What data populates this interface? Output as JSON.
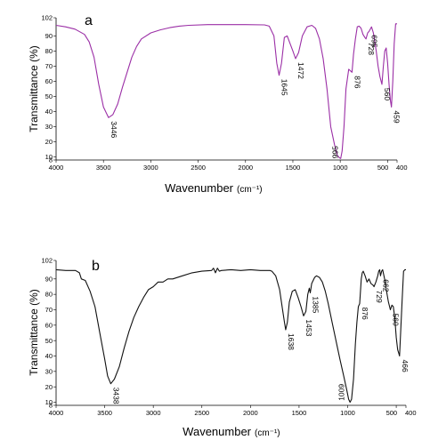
{
  "chart_data": [
    {
      "type": "line",
      "panel_label": "a",
      "xlabel": "Wavenumber",
      "xlabel_unit": "(cm⁻¹)",
      "ylabel": "Transmittance (%)",
      "xlim": [
        4000,
        400
      ],
      "ylim": [
        8,
        102
      ],
      "x_ticks": [
        "4000",
        "3500",
        "3000",
        "2500",
        "2000",
        "1500",
        "1000",
        "500",
        "400"
      ],
      "y_ticks": [
        "102",
        "90",
        "80",
        "70",
        "60",
        "50",
        "40",
        "30",
        "20",
        "10",
        "8"
      ],
      "line_color": "#9b2fa6",
      "points": [
        [
          4000,
          97
        ],
        [
          3900,
          96
        ],
        [
          3800,
          94.5
        ],
        [
          3700,
          91
        ],
        [
          3650,
          86
        ],
        [
          3600,
          76
        ],
        [
          3550,
          58
        ],
        [
          3500,
          43
        ],
        [
          3446,
          36
        ],
        [
          3400,
          38
        ],
        [
          3350,
          45
        ],
        [
          3300,
          56
        ],
        [
          3250,
          66
        ],
        [
          3200,
          76
        ],
        [
          3150,
          83
        ],
        [
          3100,
          88
        ],
        [
          3000,
          92
        ],
        [
          2900,
          94
        ],
        [
          2800,
          95.5
        ],
        [
          2700,
          96.5
        ],
        [
          2600,
          97
        ],
        [
          2400,
          97.5
        ],
        [
          2200,
          97.5
        ],
        [
          2000,
          97.5
        ],
        [
          1800,
          97.3
        ],
        [
          1750,
          96.5
        ],
        [
          1700,
          90
        ],
        [
          1670,
          72
        ],
        [
          1645,
          64
        ],
        [
          1620,
          72
        ],
        [
          1590,
          89
        ],
        [
          1560,
          90
        ],
        [
          1530,
          85
        ],
        [
          1500,
          80
        ],
        [
          1472,
          75
        ],
        [
          1440,
          79
        ],
        [
          1400,
          90
        ],
        [
          1350,
          96
        ],
        [
          1300,
          97
        ],
        [
          1260,
          95
        ],
        [
          1220,
          88
        ],
        [
          1180,
          75
        ],
        [
          1140,
          55
        ],
        [
          1100,
          30
        ],
        [
          1060,
          18
        ],
        [
          1030,
          11
        ],
        [
          1010,
          9.5
        ],
        [
          995,
          9
        ],
        [
          980,
          14
        ],
        [
          960,
          30
        ],
        [
          940,
          55
        ],
        [
          910,
          68
        ],
        [
          876,
          66
        ],
        [
          860,
          78
        ],
        [
          840,
          88
        ],
        [
          820,
          96
        ],
        [
          800,
          96.5
        ],
        [
          780,
          95
        ],
        [
          760,
          91
        ],
        [
          740,
          89
        ],
        [
          728,
          88
        ],
        [
          710,
          92
        ],
        [
          695,
          93
        ],
        [
          670,
          96
        ],
        [
          650,
          92
        ],
        [
          620,
          80
        ],
        [
          600,
          70
        ],
        [
          580,
          63
        ],
        [
          560,
          58
        ],
        [
          545,
          70
        ],
        [
          530,
          80
        ],
        [
          515,
          82
        ],
        [
          500,
          72
        ],
        [
          485,
          58
        ],
        [
          470,
          47
        ],
        [
          459,
          43
        ],
        [
          445,
          60
        ],
        [
          430,
          85
        ],
        [
          415,
          98
        ],
        [
          400,
          98
        ]
      ],
      "peak_labels": [
        "3446",
        "1645",
        "1472",
        "995",
        "876",
        "728",
        "695",
        "560",
        "459"
      ]
    },
    {
      "type": "line",
      "panel_label": "b",
      "xlabel": "Wavenumber",
      "xlabel_unit": "(cm⁻¹)",
      "ylabel": "Transmittance (%)",
      "xlim": [
        4000,
        400
      ],
      "ylim": [
        8,
        102
      ],
      "x_ticks": [
        "4000",
        "3500",
        "3000",
        "2500",
        "2000",
        "1500",
        "1000",
        "500",
        "400"
      ],
      "y_ticks": [
        "102",
        "90",
        "80",
        "70",
        "60",
        "50",
        "40",
        "30",
        "20",
        "10",
        "8"
      ],
      "line_color": "#111111",
      "points": [
        [
          4000,
          96
        ],
        [
          3900,
          95.5
        ],
        [
          3800,
          95.5
        ],
        [
          3760,
          94
        ],
        [
          3740,
          90
        ],
        [
          3700,
          89
        ],
        [
          3650,
          82
        ],
        [
          3600,
          72
        ],
        [
          3550,
          55
        ],
        [
          3500,
          38
        ],
        [
          3470,
          27
        ],
        [
          3438,
          22
        ],
        [
          3400,
          25
        ],
        [
          3350,
          33
        ],
        [
          3300,
          45
        ],
        [
          3250,
          56
        ],
        [
          3200,
          65
        ],
        [
          3150,
          72
        ],
        [
          3100,
          78
        ],
        [
          3050,
          83
        ],
        [
          3000,
          85
        ],
        [
          2950,
          88
        ],
        [
          2900,
          88
        ],
        [
          2850,
          90
        ],
        [
          2800,
          90
        ],
        [
          2700,
          92
        ],
        [
          2600,
          94
        ],
        [
          2500,
          95
        ],
        [
          2400,
          95.5
        ],
        [
          2380,
          97
        ],
        [
          2360,
          94
        ],
        [
          2340,
          97
        ],
        [
          2320,
          95
        ],
        [
          2300,
          95.5
        ],
        [
          2200,
          96
        ],
        [
          2100,
          95.5
        ],
        [
          2000,
          96
        ],
        [
          1900,
          95.5
        ],
        [
          1800,
          95.5
        ],
        [
          1780,
          95
        ],
        [
          1740,
          92
        ],
        [
          1700,
          83
        ],
        [
          1670,
          70
        ],
        [
          1650,
          62
        ],
        [
          1638,
          57
        ],
        [
          1620,
          62
        ],
        [
          1600,
          75
        ],
        [
          1570,
          82
        ],
        [
          1540,
          83
        ],
        [
          1510,
          78
        ],
        [
          1480,
          72
        ],
        [
          1453,
          66
        ],
        [
          1430,
          69
        ],
        [
          1410,
          80
        ],
        [
          1395,
          84
        ],
        [
          1385,
          81
        ],
        [
          1370,
          87
        ],
        [
          1340,
          91
        ],
        [
          1320,
          92
        ],
        [
          1290,
          91
        ],
        [
          1260,
          88
        ],
        [
          1230,
          82
        ],
        [
          1200,
          74
        ],
        [
          1160,
          62
        ],
        [
          1120,
          50
        ],
        [
          1080,
          38
        ],
        [
          1040,
          27
        ],
        [
          1009,
          18
        ],
        [
          990,
          12
        ],
        [
          975,
          10
        ],
        [
          960,
          12
        ],
        [
          940,
          25
        ],
        [
          920,
          48
        ],
        [
          905,
          62
        ],
        [
          890,
          72
        ],
        [
          876,
          74
        ],
        [
          860,
          90
        ],
        [
          850,
          94
        ],
        [
          840,
          95
        ],
        [
          820,
          92
        ],
        [
          800,
          88
        ],
        [
          780,
          90
        ],
        [
          760,
          87
        ],
        [
          740,
          86
        ],
        [
          729,
          85
        ],
        [
          710,
          88
        ],
        [
          690,
          92
        ],
        [
          680,
          95
        ],
        [
          670,
          96
        ],
        [
          662,
          92
        ],
        [
          650,
          95
        ],
        [
          640,
          96
        ],
        [
          620,
          90
        ],
        [
          600,
          82
        ],
        [
          580,
          75
        ],
        [
          560,
          70
        ],
        [
          545,
          73
        ],
        [
          530,
          72
        ],
        [
          515,
          65
        ],
        [
          500,
          52
        ],
        [
          485,
          44
        ],
        [
          475,
          42
        ],
        [
          466,
          40
        ],
        [
          455,
          55
        ],
        [
          440,
          75
        ],
        [
          425,
          95
        ],
        [
          410,
          96
        ],
        [
          400,
          96
        ]
      ],
      "peak_labels": [
        "3438",
        "1638",
        "1453",
        "1385",
        "1009",
        "876",
        "729",
        "662",
        "560",
        "466"
      ]
    }
  ]
}
